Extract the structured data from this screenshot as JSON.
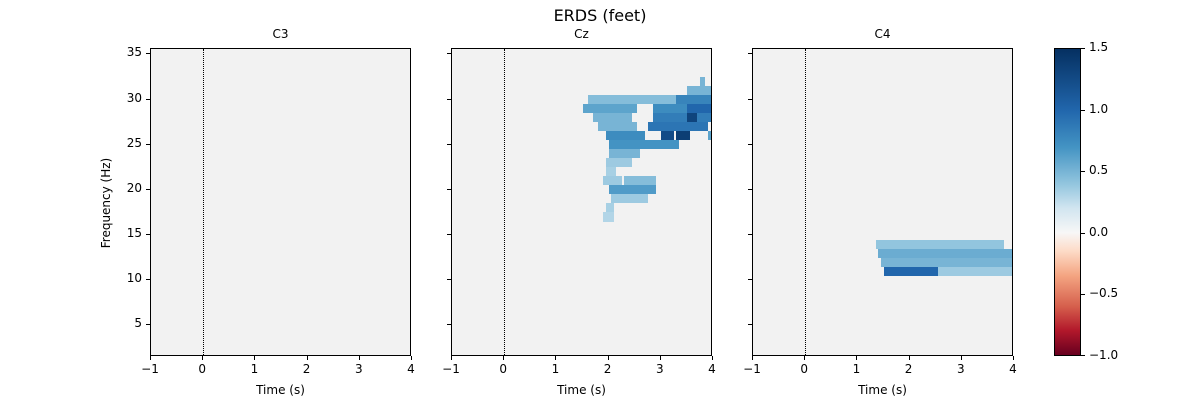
{
  "chart_data": {
    "type": "heatmap",
    "title": "ERDS (feet)",
    "xlabel": "Time (s)",
    "ylabel": "Frequency (Hz)",
    "xlim": [
      -1,
      4
    ],
    "ylim": [
      1.5,
      35.6
    ],
    "xticks": [
      -1,
      0,
      1,
      2,
      3,
      4
    ],
    "xtick_labels": [
      "−1",
      "0",
      "1",
      "2",
      "3",
      "4"
    ],
    "yticks": [
      5,
      10,
      15,
      20,
      25,
      30,
      35
    ],
    "ytick_labels": [
      "5",
      "10",
      "15",
      "20",
      "25",
      "30",
      "35"
    ],
    "event_marker_time": 0,
    "colorbar": {
      "cmap": "RdBu",
      "vmin": -1.0,
      "vmax": 1.5,
      "ticks": [
        -1.0,
        -0.5,
        0.0,
        0.5,
        1.0,
        1.5
      ],
      "tick_labels": [
        "−1.0",
        "−0.5",
        "0.0",
        "0.5",
        "1.0",
        "1.5"
      ]
    },
    "panels": [
      {
        "name": "C3",
        "significant_regions": []
      },
      {
        "name": "Cz",
        "significant_regions": [
          {
            "t0": 3.75,
            "t1": 3.85,
            "f0": 31.5,
            "f1": 32.5,
            "value": 0.6
          },
          {
            "t0": 3.5,
            "t1": 4.0,
            "f0": 30.5,
            "f1": 31.5,
            "value": 0.6
          },
          {
            "t0": 1.6,
            "t1": 4.0,
            "f0": 29.5,
            "f1": 30.5,
            "value": 0.55
          },
          {
            "t0": 3.3,
            "t1": 4.0,
            "f0": 29.5,
            "f1": 30.5,
            "value": 0.9
          },
          {
            "t0": 1.5,
            "t1": 2.55,
            "f0": 28.5,
            "f1": 29.5,
            "value": 0.7
          },
          {
            "t0": 2.85,
            "t1": 4.0,
            "f0": 28.5,
            "f1": 29.5,
            "value": 0.85
          },
          {
            "t0": 3.5,
            "t1": 4.0,
            "f0": 28.5,
            "f1": 29.5,
            "value": 1.1
          },
          {
            "t0": 1.7,
            "t1": 2.45,
            "f0": 27.5,
            "f1": 28.5,
            "value": 0.6
          },
          {
            "t0": 2.85,
            "t1": 4.0,
            "f0": 27.5,
            "f1": 28.5,
            "value": 0.95
          },
          {
            "t0": 3.5,
            "t1": 3.7,
            "f0": 27.5,
            "f1": 28.5,
            "value": 1.35
          },
          {
            "t0": 1.8,
            "t1": 2.55,
            "f0": 26.5,
            "f1": 27.5,
            "value": 0.6
          },
          {
            "t0": 2.75,
            "t1": 3.9,
            "f0": 26.5,
            "f1": 27.5,
            "value": 1.0
          },
          {
            "t0": 1.95,
            "t1": 2.7,
            "f0": 25.5,
            "f1": 26.5,
            "value": 0.85
          },
          {
            "t0": 3.0,
            "t1": 3.25,
            "f0": 25.5,
            "f1": 26.5,
            "value": 1.3
          },
          {
            "t0": 3.3,
            "t1": 3.55,
            "f0": 25.5,
            "f1": 26.5,
            "value": 1.4
          },
          {
            "t0": 3.9,
            "t1": 4.0,
            "f0": 25.5,
            "f1": 26.5,
            "value": 0.7
          },
          {
            "t0": 2.0,
            "t1": 3.35,
            "f0": 24.5,
            "f1": 25.5,
            "value": 0.8
          },
          {
            "t0": 2.0,
            "t1": 2.6,
            "f0": 23.5,
            "f1": 24.5,
            "value": 0.6
          },
          {
            "t0": 1.95,
            "t1": 2.45,
            "f0": 22.5,
            "f1": 23.5,
            "value": 0.45
          },
          {
            "t0": 1.95,
            "t1": 2.15,
            "f0": 21.5,
            "f1": 22.5,
            "value": 0.4
          },
          {
            "t0": 1.9,
            "t1": 2.25,
            "f0": 20.5,
            "f1": 21.5,
            "value": 0.45
          },
          {
            "t0": 2.3,
            "t1": 2.9,
            "f0": 20.5,
            "f1": 21.5,
            "value": 0.55
          },
          {
            "t0": 2.0,
            "t1": 2.9,
            "f0": 19.5,
            "f1": 20.5,
            "value": 0.75
          },
          {
            "t0": 2.05,
            "t1": 2.75,
            "f0": 18.5,
            "f1": 19.5,
            "value": 0.45
          },
          {
            "t0": 1.95,
            "t1": 2.1,
            "f0": 17.5,
            "f1": 18.5,
            "value": 0.4
          },
          {
            "t0": 1.9,
            "t1": 2.1,
            "f0": 16.5,
            "f1": 17.5,
            "value": 0.35
          }
        ]
      },
      {
        "name": "C4",
        "significant_regions": [
          {
            "t0": 1.35,
            "t1": 3.8,
            "f0": 13.5,
            "f1": 14.5,
            "value": 0.5
          },
          {
            "t0": 1.4,
            "t1": 4.0,
            "f0": 12.5,
            "f1": 13.5,
            "value": 0.65
          },
          {
            "t0": 1.45,
            "t1": 4.0,
            "f0": 11.5,
            "f1": 12.5,
            "value": 0.6
          },
          {
            "t0": 1.5,
            "t1": 2.55,
            "f0": 10.5,
            "f1": 11.5,
            "value": 1.1
          },
          {
            "t0": 2.55,
            "t1": 4.0,
            "f0": 10.5,
            "f1": 11.5,
            "value": 0.45
          }
        ]
      }
    ]
  }
}
